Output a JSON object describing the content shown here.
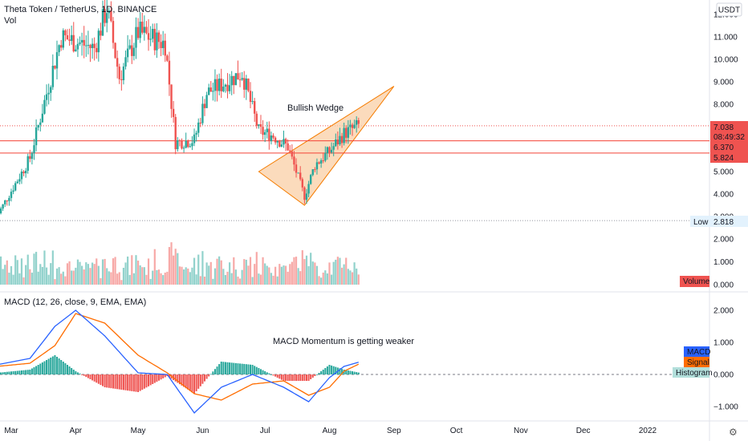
{
  "header": {
    "symbol_title": "Theta Token / TetherUS, 1D, BINANCE",
    "volume_label": "Vol",
    "currency_label": "USDT"
  },
  "price_axis": {
    "ticks": [
      "12.000",
      "11.000",
      "10.000",
      "9.000",
      "8.000",
      "7.000",
      "6.000",
      "5.000",
      "4.000",
      "3.000"
    ],
    "tick_values": [
      12,
      11,
      10,
      9,
      8,
      7,
      6,
      5,
      4,
      3
    ]
  },
  "volume_axis": {
    "ticks": [
      "2.000",
      "1.000",
      "0.000"
    ],
    "tick_values": [
      2,
      1,
      0
    ]
  },
  "macd_axis": {
    "ticks": [
      "2.000",
      "1.000",
      "0.000",
      "−1.000"
    ],
    "tick_values": [
      2,
      1,
      0,
      -1
    ]
  },
  "time_axis": {
    "labels": [
      "Mar",
      "Apr",
      "May",
      "Jun",
      "Jul",
      "Aug",
      "Sep",
      "Oct",
      "Nov",
      "Dec",
      "2022"
    ]
  },
  "price_badges": {
    "last_price": "7.038",
    "countdown": "08:49:32",
    "level_upper": "6.370",
    "level_lower": "5.824",
    "low_label": "Low",
    "low_value": "2.818",
    "volume_tag": "Volume"
  },
  "macd_panel": {
    "title": "MACD (12, 26, close, 9, EMA, EMA)",
    "legend_macd": "MACD",
    "legend_signal": "Signal",
    "legend_histogram": "Histogram"
  },
  "annotations": {
    "wedge_label": "Bullish Wedge",
    "macd_note": "MACD Momentum is getting weaker"
  },
  "colors": {
    "up": "#26a69a",
    "down": "#ef5350",
    "level_line": "#f44336",
    "wedge_fill": "#f9cfa6",
    "wedge_stroke": "#f57c00",
    "macd_line": "#2962ff",
    "signal_line": "#ff6d00",
    "histogram_up": "#26a69a",
    "histogram_down": "#ef5350",
    "badge_blue": "#2962ff",
    "badge_orange": "#ff6d00",
    "badge_hist": "#b2dfdb"
  },
  "chart_data": {
    "type": "candlestick",
    "title": "Theta Token / TetherUS, 1D, BINANCE",
    "x_range": [
      "2021-02-22",
      "2022-01-10"
    ],
    "price_ylim": [
      2.5,
      12.5
    ],
    "horizontal_levels": [
      6.37,
      5.824
    ],
    "last_price": 7.038,
    "low": 2.818,
    "price_anchors": [
      {
        "date": "2021-02-22",
        "price": 3.0
      },
      {
        "date": "2021-03-10",
        "price": 5.6
      },
      {
        "date": "2021-03-25",
        "price": 11.0
      },
      {
        "date": "2021-04-10",
        "price": 10.5
      },
      {
        "date": "2021-04-16",
        "price": 12.3
      },
      {
        "date": "2021-04-22",
        "price": 9.2
      },
      {
        "date": "2021-05-01",
        "price": 11.2
      },
      {
        "date": "2021-05-14",
        "price": 10.7
      },
      {
        "date": "2021-05-19",
        "price": 6.3
      },
      {
        "date": "2021-05-28",
        "price": 6.4
      },
      {
        "date": "2021-06-03",
        "price": 8.5
      },
      {
        "date": "2021-06-20",
        "price": 9.4
      },
      {
        "date": "2021-06-28",
        "price": 6.8
      },
      {
        "date": "2021-07-05",
        "price": 6.6
      },
      {
        "date": "2021-07-12",
        "price": 6.1
      },
      {
        "date": "2021-07-20",
        "price": 3.9
      },
      {
        "date": "2021-07-25",
        "price": 5.3
      },
      {
        "date": "2021-08-01",
        "price": 5.9
      },
      {
        "date": "2021-08-08",
        "price": 6.7
      },
      {
        "date": "2021-08-15",
        "price": 7.04
      }
    ],
    "wedge_triangle": [
      {
        "date": "2021-06-28",
        "price": 5.0
      },
      {
        "date": "2021-07-20",
        "price": 3.5
      },
      {
        "date": "2021-09-01",
        "price": 8.8
      }
    ],
    "volume_ylim": [
      0,
      3
    ],
    "macd_ylim": [
      -1.5,
      2.5
    ],
    "macd_anchors": [
      {
        "date": "2021-02-22",
        "macd": 0.3,
        "signal": 0.25
      },
      {
        "date": "2021-03-10",
        "macd": 0.5,
        "signal": 0.35
      },
      {
        "date": "2021-03-22",
        "macd": 1.5,
        "signal": 0.9
      },
      {
        "date": "2021-04-01",
        "macd": 2.0,
        "signal": 1.9
      },
      {
        "date": "2021-04-15",
        "macd": 1.2,
        "signal": 1.6
      },
      {
        "date": "2021-05-01",
        "macd": 0.05,
        "signal": 0.6
      },
      {
        "date": "2021-05-15",
        "macd": 0.0,
        "signal": 0.05
      },
      {
        "date": "2021-05-28",
        "macd": -1.2,
        "signal": -0.6
      },
      {
        "date": "2021-06-10",
        "macd": -0.4,
        "signal": -0.8
      },
      {
        "date": "2021-06-25",
        "macd": 0.0,
        "signal": -0.3
      },
      {
        "date": "2021-07-10",
        "macd": -0.4,
        "signal": -0.2
      },
      {
        "date": "2021-07-22",
        "macd": -0.85,
        "signal": -0.65
      },
      {
        "date": "2021-08-01",
        "macd": -0.1,
        "signal": -0.4
      },
      {
        "date": "2021-08-08",
        "macd": 0.25,
        "signal": 0.1
      },
      {
        "date": "2021-08-15",
        "macd": 0.38,
        "signal": 0.32
      }
    ]
  }
}
